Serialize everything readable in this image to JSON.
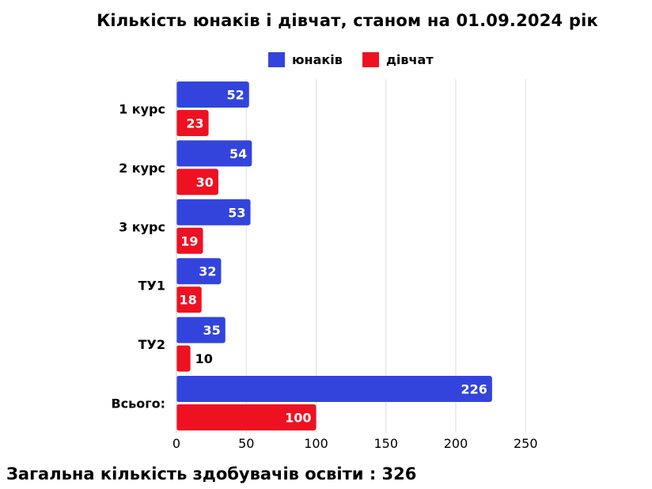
{
  "chart_data": {
    "type": "bar",
    "orientation": "horizontal",
    "title": "Кількість юнаків і дівчат, станом на 01.09.2024 рік",
    "categories": [
      "1 курс",
      "2 курс",
      "3 курс",
      "ТУ1",
      "ТУ2",
      "Всього:"
    ],
    "series": [
      {
        "name": "юнаків",
        "color": "#3344dd",
        "values": [
          52,
          54,
          53,
          32,
          35,
          226
        ]
      },
      {
        "name": "дівчат",
        "color": "#ee1122",
        "values": [
          23,
          30,
          19,
          18,
          10,
          100
        ]
      }
    ],
    "xlim": [
      0,
      250
    ],
    "xticks": [
      "0",
      "50",
      "100",
      "150",
      "200",
      "250"
    ],
    "grid": "vertical",
    "legend": "top-center",
    "data_labels": true
  },
  "footer": {
    "total_text": "Загальна кількість здобувачів освіти : 326"
  }
}
